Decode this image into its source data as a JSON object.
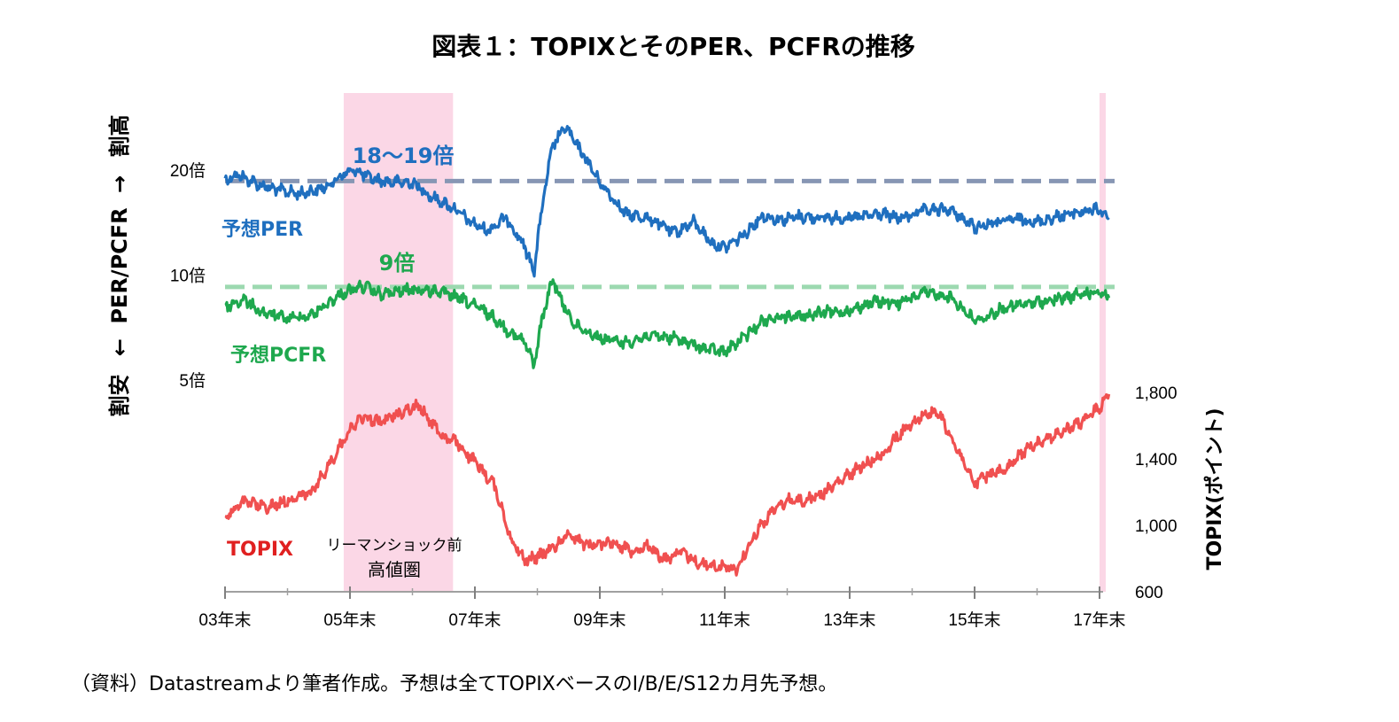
{
  "chart_data": {
    "type": "line",
    "title": "図表１：TOPIXとそのPER、PCFRの推移",
    "x_ticks": [
      "03年末",
      "05年末",
      "07年末",
      "09年末",
      "11年末",
      "13年末",
      "15年末",
      "17年末"
    ],
    "left_axis": {
      "label_parts": [
        "割安",
        "←",
        "PER/PCFR",
        "→",
        "割高"
      ],
      "ticks": [
        {
          "label": "20倍",
          "value": 20
        },
        {
          "label": "10倍",
          "value": 10
        },
        {
          "label": "5倍",
          "value": 5
        }
      ],
      "scale": "log"
    },
    "right_axis": {
      "label": "TOPIX(ポイント)",
      "ticks": [
        {
          "label": "1,800",
          "value": 1800
        },
        {
          "label": "1,400",
          "value": 1400
        },
        {
          "label": "1,000",
          "value": 1000
        },
        {
          "label": "600",
          "value": 600
        }
      ],
      "ylim": [
        600,
        1800
      ]
    },
    "shaded_periods": [
      {
        "from": 2005.9,
        "to": 2007.65,
        "label_line1": "リーマンショック前",
        "label_line2": "高値圏"
      },
      {
        "from": 2018.0,
        "to": 2018.1,
        "label_line1": "",
        "label_line2": ""
      }
    ],
    "reference_lines": [
      {
        "series": "予想PER",
        "value": 18.6,
        "label": "18〜19倍",
        "color": "#8796b4"
      },
      {
        "series": "予想PCFR",
        "value": 9.25,
        "label": "9倍",
        "color": "#9cd9b0"
      }
    ],
    "series": [
      {
        "name": "予想PER",
        "axis": "left",
        "color": "#1f6fbf",
        "x": [
          2004.0,
          2004.2,
          2004.5,
          2004.8,
          2005.2,
          2005.6,
          2005.9,
          2006.1,
          2006.3,
          2006.6,
          2007.0,
          2007.3,
          2007.7,
          2007.9,
          2008.2,
          2008.5,
          2008.8,
          2008.95,
          2009.1,
          2009.25,
          2009.45,
          2009.6,
          2010.0,
          2010.4,
          2010.8,
          2011.2,
          2011.5,
          2011.8,
          2012.0,
          2012.3,
          2012.6,
          2012.9,
          2013.2,
          2013.5,
          2013.8,
          2014.1,
          2014.5,
          2014.8,
          2015.2,
          2015.6,
          2016.0,
          2016.2,
          2016.4,
          2016.7,
          2017.0,
          2017.4,
          2017.8,
          2018.0,
          2018.15
        ],
        "y": [
          18.8,
          19.4,
          18.3,
          17.6,
          17.1,
          17.8,
          19.5,
          20.0,
          19.0,
          18.5,
          18.4,
          16.8,
          15.4,
          14.3,
          13.4,
          14.6,
          12.0,
          10.2,
          16.6,
          23.5,
          26.6,
          24.0,
          18.4,
          15.0,
          14.5,
          13.2,
          14.2,
          12.3,
          12.0,
          13.0,
          14.8,
          14.4,
          14.7,
          14.6,
          14.6,
          14.6,
          15.0,
          14.5,
          15.3,
          15.4,
          13.7,
          14.0,
          14.2,
          14.5,
          14.2,
          14.8,
          15.3,
          15.4,
          14.6
        ]
      },
      {
        "name": "予想PCFR",
        "axis": "left",
        "color": "#1ea84e",
        "x": [
          2004.0,
          2004.3,
          2004.6,
          2005.0,
          2005.4,
          2005.9,
          2006.2,
          2006.5,
          2007.0,
          2007.4,
          2007.8,
          2008.2,
          2008.5,
          2008.8,
          2008.95,
          2009.1,
          2009.25,
          2009.4,
          2009.6,
          2010.0,
          2010.4,
          2010.8,
          2011.2,
          2011.6,
          2012.0,
          2012.3,
          2012.6,
          2012.9,
          2013.2,
          2013.6,
          2014.0,
          2014.4,
          2014.8,
          2015.2,
          2015.6,
          2016.0,
          2016.2,
          2016.5,
          2016.9,
          2017.3,
          2017.7,
          2018.0,
          2018.15
        ],
        "y": [
          8.1,
          8.5,
          7.8,
          7.5,
          7.7,
          8.9,
          9.3,
          8.8,
          9.1,
          9.0,
          8.5,
          7.8,
          7.0,
          6.4,
          5.5,
          7.8,
          9.7,
          8.3,
          7.2,
          6.6,
          6.4,
          6.7,
          6.6,
          6.2,
          6.0,
          6.6,
          7.4,
          7.6,
          7.6,
          7.8,
          7.9,
          8.4,
          8.3,
          8.9,
          8.7,
          7.4,
          7.6,
          8.1,
          8.3,
          8.5,
          8.8,
          9.0,
          8.6
        ]
      },
      {
        "name": "TOPIX",
        "axis": "right",
        "color": "#f05050",
        "x": [
          2004.0,
          2004.3,
          2004.7,
          2005.0,
          2005.4,
          2005.8,
          2006.0,
          2006.2,
          2006.5,
          2006.8,
          2007.1,
          2007.5,
          2007.7,
          2008.0,
          2008.3,
          2008.6,
          2008.8,
          2009.0,
          2009.3,
          2009.5,
          2009.8,
          2010.2,
          2010.5,
          2010.8,
          2011.0,
          2011.3,
          2011.6,
          2011.9,
          2012.2,
          2012.5,
          2012.8,
          2013.0,
          2013.3,
          2013.6,
          2013.9,
          2014.2,
          2014.5,
          2014.8,
          2015.1,
          2015.4,
          2015.6,
          2015.8,
          2016.0,
          2016.2,
          2016.5,
          2016.8,
          2017.0,
          2017.4,
          2017.7,
          2018.0,
          2018.15
        ],
        "y": [
          1043,
          1140,
          1110,
          1150,
          1200,
          1450,
          1580,
          1650,
          1620,
          1680,
          1720,
          1530,
          1500,
          1380,
          1250,
          900,
          790,
          810,
          880,
          950,
          880,
          900,
          850,
          880,
          790,
          840,
          770,
          750,
          740,
          960,
          1100,
          1150,
          1150,
          1200,
          1280,
          1360,
          1420,
          1550,
          1650,
          1690,
          1550,
          1400,
          1250,
          1300,
          1330,
          1450,
          1500,
          1560,
          1620,
          1710,
          1790
        ]
      }
    ]
  },
  "source_note": "（資料）Datastreamより筆者作成。予想は全てTOPIXベースのI/B/E/S12カ月先予想。"
}
